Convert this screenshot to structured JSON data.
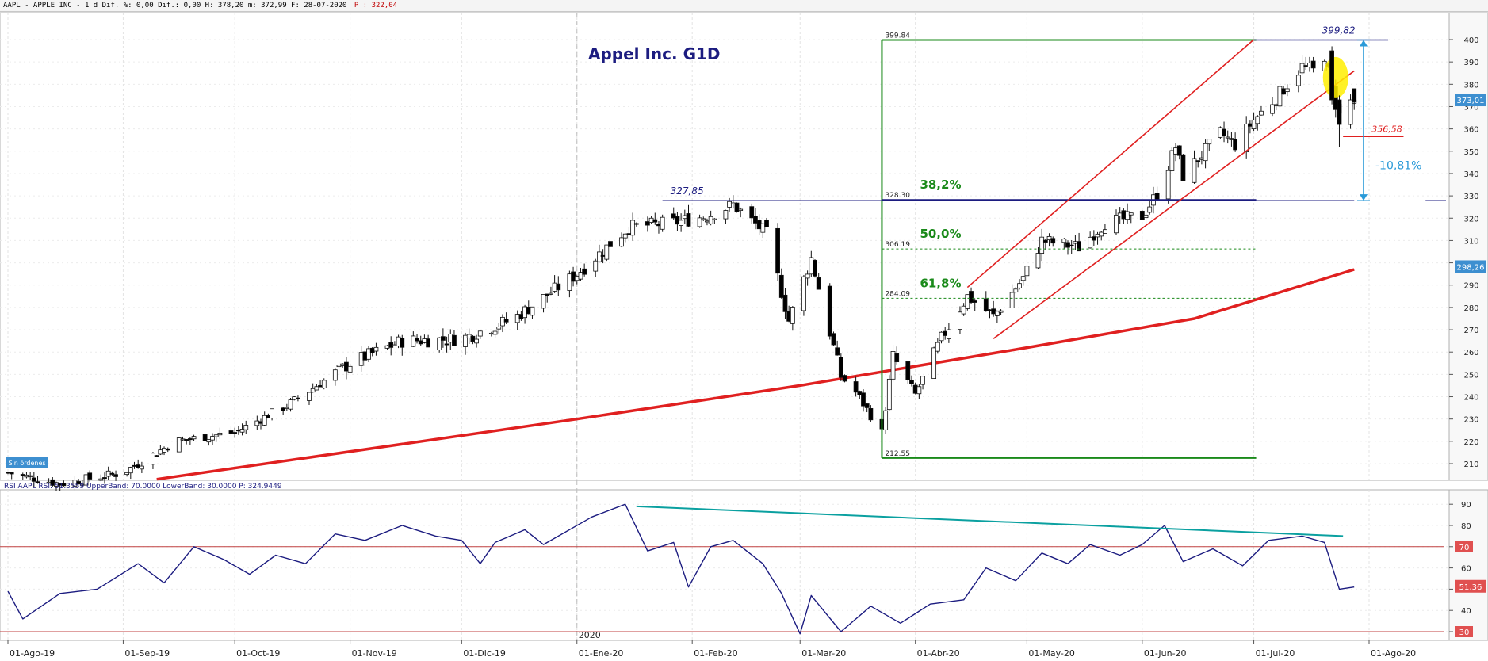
{
  "header": {
    "info": "AAPL - APPLE INC -  1 d Dif. %: 0,00 Dif.: 0,00 H: 378,20 m: 372,99 F: 28-07-2020",
    "price_label": "P : 322,04"
  },
  "colors": {
    "up_candle": "#ffffff",
    "down_candle": "#000000",
    "moving_average": "#e02020",
    "channel": "#e02020",
    "fibonacci_box": "#1a8a1a",
    "horizontal_line": "#1c1c80",
    "measure_arrow": "#2a9ad8",
    "rsi_line": "#1c1c80",
    "rsi_trendline": "#0aa0a0",
    "highlight": "#ffee00",
    "axis_badge": "#3d8fd0",
    "rsi_badge": "#e05050"
  },
  "chart_data": [
    {
      "type": "candlestick",
      "title": "Appel Inc. G1D",
      "series_name": "AAPL",
      "y_axis_side": "right",
      "ylim": [
        203,
        406
      ],
      "y_ticks": [
        210,
        220,
        230,
        240,
        250,
        260,
        270,
        280,
        290,
        300,
        310,
        320,
        330,
        340,
        350,
        360,
        370,
        380,
        390,
        400
      ],
      "x_dates": [
        "2019-08-01",
        "2019-09-01",
        "2019-10-01",
        "2019-11-01",
        "2019-12-01",
        "2020-01-01",
        "2020-02-01",
        "2020-03-01",
        "2020-04-01",
        "2020-05-01",
        "2020-06-01",
        "2020-07-01",
        "2020-08-01"
      ],
      "x_tick_labels": [
        "01-Ago-19",
        "01-Sep-19",
        "01-Oct-19",
        "01-Nov-19",
        "01-Dic-19",
        "01-Ene-20",
        "01-Feb-20",
        "01-Mar-20",
        "01-Abr-20",
        "01-May-20",
        "01-Jun-20",
        "01-Jul-20",
        "01-Ago-20"
      ],
      "year_label": "2020",
      "close_path": [
        [
          "2019-08-01",
          206
        ],
        [
          "2019-08-15",
          201
        ],
        [
          "2019-09-01",
          206
        ],
        [
          "2019-09-15",
          220
        ],
        [
          "2019-10-01",
          224
        ],
        [
          "2019-10-15",
          236
        ],
        [
          "2019-11-01",
          255
        ],
        [
          "2019-11-15",
          265
        ],
        [
          "2019-12-01",
          266
        ],
        [
          "2019-12-15",
          275
        ],
        [
          "2020-01-01",
          295
        ],
        [
          "2020-01-15",
          316
        ],
        [
          "2020-01-27",
          318
        ],
        [
          "2020-02-05",
          321
        ],
        [
          "2020-02-12",
          326
        ],
        [
          "2020-02-21",
          313
        ],
        [
          "2020-02-27",
          274
        ],
        [
          "2020-03-04",
          302
        ],
        [
          "2020-03-12",
          249
        ],
        [
          "2020-03-16",
          242
        ],
        [
          "2020-03-23",
          224
        ],
        [
          "2020-03-26",
          258
        ],
        [
          "2020-04-01",
          241
        ],
        [
          "2020-04-08",
          266
        ],
        [
          "2020-04-15",
          285
        ],
        [
          "2020-04-22",
          276
        ],
        [
          "2020-04-30",
          293
        ],
        [
          "2020-05-05",
          310
        ],
        [
          "2020-05-15",
          307
        ],
        [
          "2020-05-22",
          318
        ],
        [
          "2020-06-01",
          321
        ],
        [
          "2020-06-05",
          331
        ],
        [
          "2020-06-10",
          352
        ],
        [
          "2020-06-12",
          339
        ],
        [
          "2020-06-22",
          358
        ],
        [
          "2020-06-26",
          353
        ],
        [
          "2020-07-01",
          364
        ],
        [
          "2020-07-07",
          374
        ],
        [
          "2020-07-14",
          388
        ],
        [
          "2020-07-17",
          386
        ],
        [
          "2020-07-20",
          393
        ],
        [
          "2020-07-23",
          371
        ],
        [
          "2020-07-24",
          370
        ],
        [
          "2020-07-28",
          373
        ]
      ],
      "moving_average": [
        [
          "2019-09-10",
          203
        ],
        [
          "2020-01-01",
          230
        ],
        [
          "2020-03-01",
          245
        ],
        [
          "2020-05-01",
          262
        ],
        [
          "2020-06-15",
          275
        ],
        [
          "2020-07-28",
          297
        ]
      ],
      "annotations": {
        "previous_high": {
          "label": "327,85",
          "value": 327.85,
          "start": "2020-01-24",
          "end": "2020-07-28"
        },
        "high": {
          "label": "399,82",
          "value": 399.82,
          "start": "2020-07-01",
          "end": "2020-08-04"
        },
        "low_after_drop": {
          "label": "356,58",
          "value": 356.58
        },
        "drop_percent": "-10,81%",
        "last_price_badge": "373,01",
        "ma_badge": "298,26",
        "orders_badge": "Sin órdenes"
      },
      "fibonacci": {
        "high": 399.84,
        "low": 212.55,
        "start": "2020-03-23",
        "end": "2020-07-01",
        "levels": [
          {
            "value": 399.84,
            "label": "399.84",
            "percent": ""
          },
          {
            "value": 328.3,
            "label": "328.30",
            "percent": "38,2%"
          },
          {
            "value": 306.19,
            "label": "306.19",
            "percent": "50,0%"
          },
          {
            "value": 284.09,
            "label": "284.09",
            "percent": "61,8%"
          },
          {
            "value": 212.55,
            "label": "212.55",
            "percent": ""
          }
        ]
      },
      "channel": {
        "upper": [
          [
            "2020-04-15",
            289
          ],
          [
            "2020-07-01",
            400
          ]
        ],
        "lower": [
          [
            "2020-04-22",
            266
          ],
          [
            "2020-07-28",
            386
          ]
        ]
      }
    },
    {
      "type": "line",
      "title": "RSI AAPL RSI: 51.3559 UpperBand: 70.0000 LowerBand: 30.0000 P: 324.9449",
      "series_name": "RSI",
      "ylim": [
        27,
        93
      ],
      "y_ticks": [
        30,
        40,
        50,
        60,
        70,
        80,
        90
      ],
      "upper_band": 70,
      "lower_band": 30,
      "last_badge": "51,36",
      "values_path": [
        [
          "2019-08-01",
          49
        ],
        [
          "2019-08-05",
          36
        ],
        [
          "2019-08-15",
          48
        ],
        [
          "2019-08-25",
          50
        ],
        [
          "2019-09-05",
          62
        ],
        [
          "2019-09-12",
          53
        ],
        [
          "2019-09-20",
          70
        ],
        [
          "2019-09-28",
          64
        ],
        [
          "2019-10-05",
          57
        ],
        [
          "2019-10-12",
          66
        ],
        [
          "2019-10-20",
          62
        ],
        [
          "2019-10-28",
          76
        ],
        [
          "2019-11-05",
          73
        ],
        [
          "2019-11-15",
          80
        ],
        [
          "2019-11-24",
          75
        ],
        [
          "2019-12-01",
          73
        ],
        [
          "2019-12-06",
          62
        ],
        [
          "2019-12-10",
          72
        ],
        [
          "2019-12-18",
          78
        ],
        [
          "2019-12-23",
          71
        ],
        [
          "2020-01-05",
          84
        ],
        [
          "2020-01-14",
          90
        ],
        [
          "2020-01-20",
          68
        ],
        [
          "2020-01-27",
          72
        ],
        [
          "2020-01-31",
          51
        ],
        [
          "2020-02-06",
          70
        ],
        [
          "2020-02-12",
          73
        ],
        [
          "2020-02-20",
          62
        ],
        [
          "2020-02-25",
          48
        ],
        [
          "2020-03-01",
          29
        ],
        [
          "2020-03-04",
          47
        ],
        [
          "2020-03-12",
          30
        ],
        [
          "2020-03-20",
          42
        ],
        [
          "2020-03-28",
          34
        ],
        [
          "2020-04-05",
          43
        ],
        [
          "2020-04-14",
          45
        ],
        [
          "2020-04-20",
          60
        ],
        [
          "2020-04-28",
          54
        ],
        [
          "2020-05-05",
          67
        ],
        [
          "2020-05-12",
          62
        ],
        [
          "2020-05-18",
          71
        ],
        [
          "2020-05-26",
          66
        ],
        [
          "2020-06-01",
          71
        ],
        [
          "2020-06-07",
          80
        ],
        [
          "2020-06-12",
          63
        ],
        [
          "2020-06-20",
          69
        ],
        [
          "2020-06-28",
          61
        ],
        [
          "2020-07-05",
          73
        ],
        [
          "2020-07-14",
          75
        ],
        [
          "2020-07-20",
          72
        ],
        [
          "2020-07-24",
          50
        ],
        [
          "2020-07-28",
          51
        ]
      ],
      "trendline": [
        [
          "2020-01-17",
          89
        ],
        [
          "2020-07-25",
          75
        ]
      ]
    }
  ]
}
